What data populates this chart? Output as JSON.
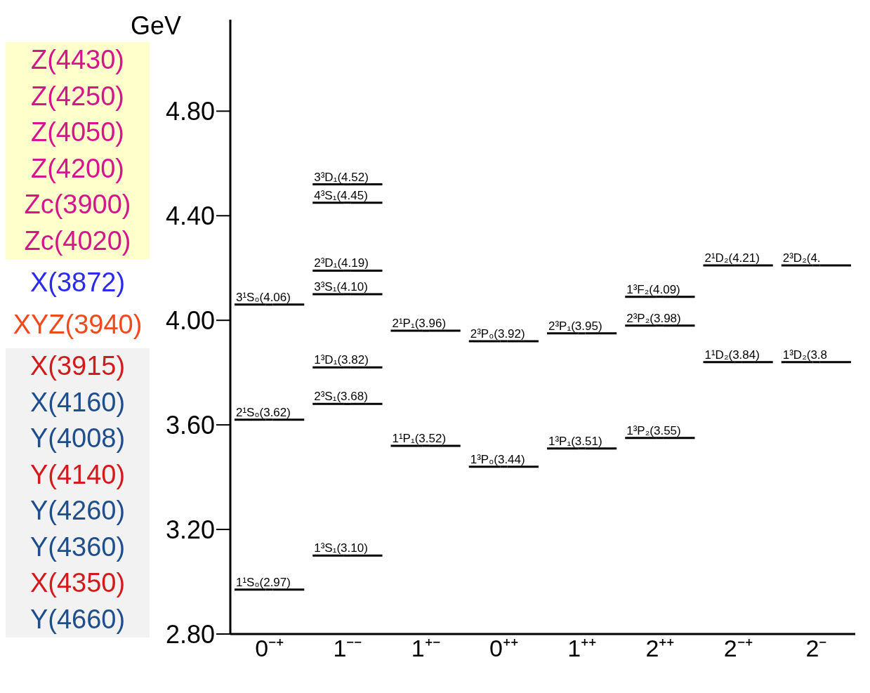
{
  "chart_data": {
    "type": "scatter",
    "ylabel": "GeV",
    "categories": [
      "0⁻⁺",
      "1⁻⁻",
      "1⁺⁻",
      "0⁺⁺",
      "1⁺⁺",
      "2⁺⁺",
      "2⁻⁺",
      "2⁻"
    ],
    "ylim": [
      2.8,
      5.15
    ],
    "yticks": [
      {
        "value": 2.8,
        "label": "2.80"
      },
      {
        "value": 3.2,
        "label": "3.20"
      },
      {
        "value": 3.6,
        "label": "3.60"
      },
      {
        "value": 4.0,
        "label": "4.00"
      },
      {
        "value": 4.4,
        "label": "4.40"
      },
      {
        "value": 4.8,
        "label": "4.80"
      }
    ],
    "series": [
      {
        "type": "scatter",
        "color": "#000000",
        "x": [
          "0⁻⁺",
          "0⁻⁺",
          "0⁻⁺",
          "1⁻⁻",
          "1⁻⁻",
          "1⁻⁻",
          "1⁻⁻",
          "1⁻⁻",
          "1⁻⁻",
          "1⁻⁻",
          "1⁺⁻",
          "1⁺⁻",
          "0⁺⁺",
          "0⁺⁺",
          "1⁺⁺",
          "1⁺⁺",
          "2⁺⁺",
          "2⁺⁺",
          "2⁺⁺",
          "2⁻⁺",
          "2⁻⁺",
          "2⁻",
          "2⁻"
        ],
        "values": [
          2.97,
          3.62,
          4.06,
          3.1,
          3.68,
          3.82,
          4.1,
          4.19,
          4.45,
          4.52,
          3.52,
          3.96,
          3.44,
          3.92,
          3.51,
          3.95,
          3.55,
          3.98,
          4.09,
          3.84,
          4.21,
          3.84,
          4.21
        ],
        "value_labels": [
          "1¹S₀(2.97)",
          "2¹S₀(3.62)",
          "3¹S₀(4.06)",
          "1³S₁(3.10)",
          "2³S₁(3.68)",
          "1³D₁(3.82)",
          "3³S₁(4.10)",
          "2³D₁(4.19)",
          "4³S₁(4.45)",
          "3³D₁(4.52)",
          "1¹P₁(3.52)",
          "2¹P₁(3.96)",
          "1³P₀(3.44)",
          "2³P₀(3.92)",
          "1³P₁(3.51)",
          "2³P₁(3.95)",
          "1³P₂(3.55)",
          "2³P₂(3.98)",
          "1³F₂(4.09)",
          "1¹D₂(3.84)",
          "2¹D₂(4.21)",
          "1³D₂(3.8",
          "2³D₂(4."
        ]
      }
    ],
    "annotations": [
      "Z(4430)",
      "Z(4250)",
      "Z(4050)",
      "Z(4200)",
      "Zc(3900)",
      "Zc(4020)",
      "X(3872)",
      "XYZ(3940)",
      "X(3915)",
      "X(4160)",
      "Y(4008)",
      "Y(4140)",
      "Y(4260)",
      "Y(4360)",
      "X(4350)",
      "Y(4660)"
    ]
  }
}
